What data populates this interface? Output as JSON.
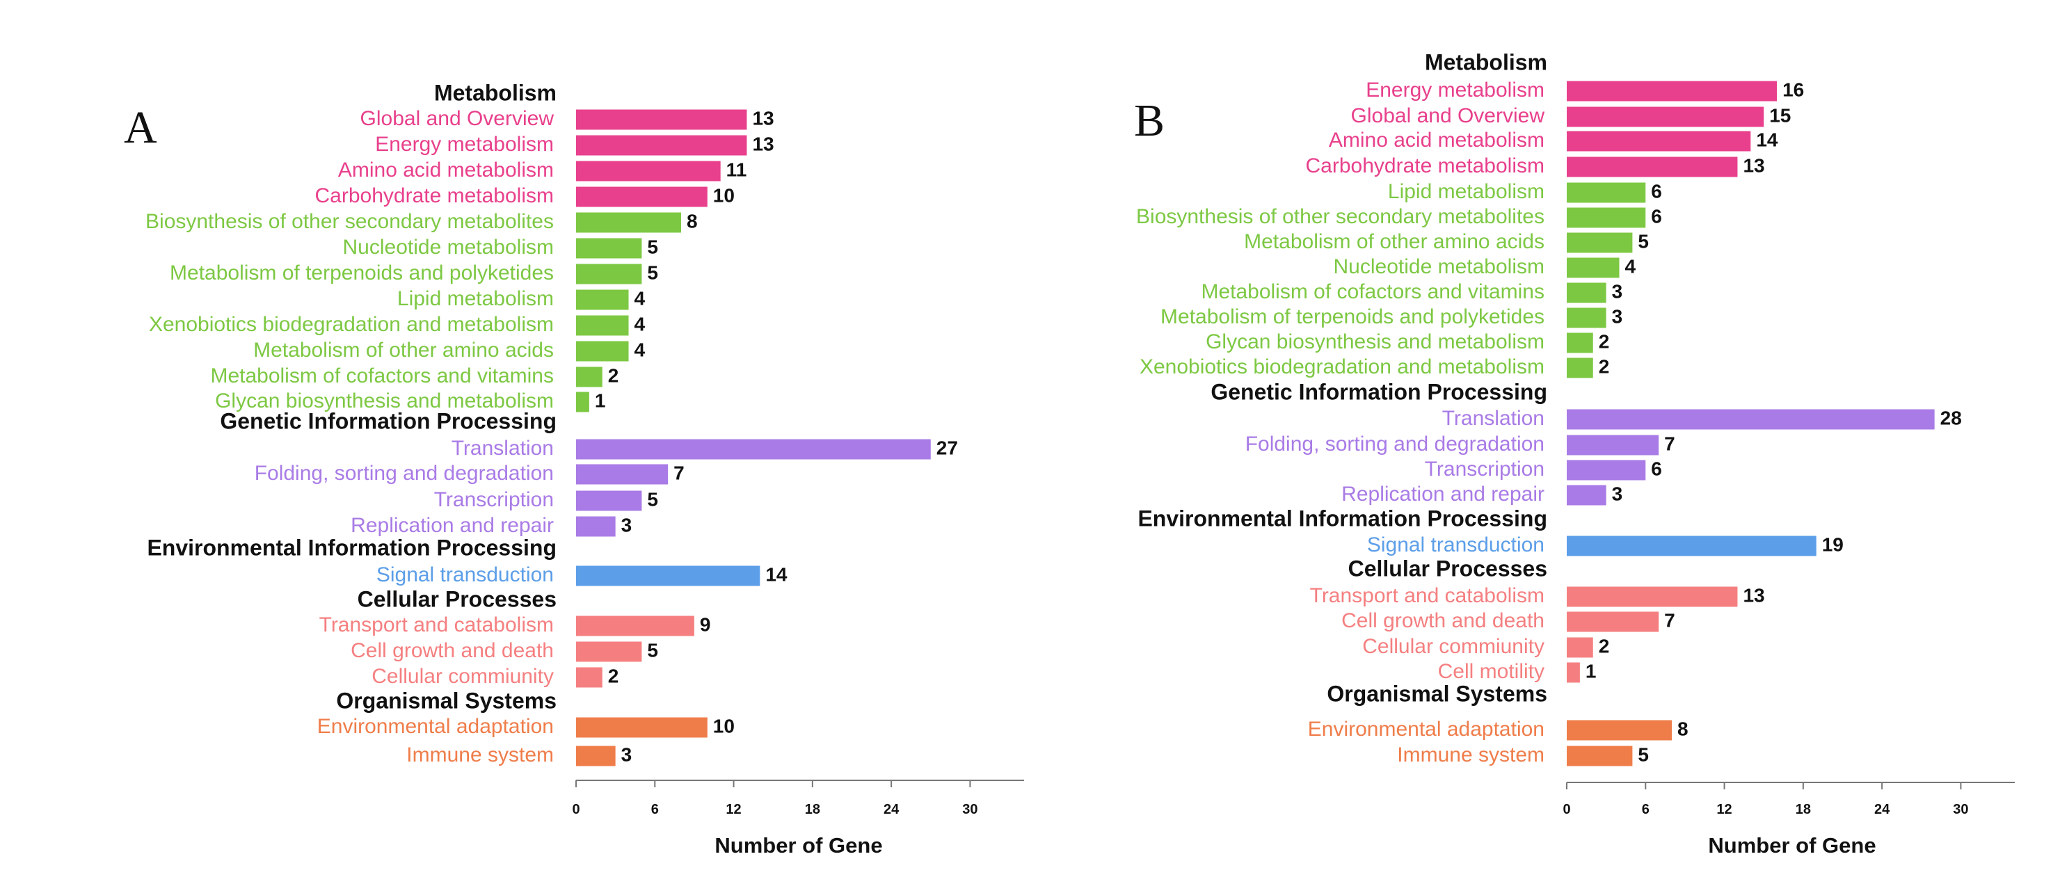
{
  "colors": {
    "Metabolism_top": "#E8408C",
    "Metabolism": "#7DC843",
    "Genetic Information Processing": "#A97BE6",
    "Environmental Information Processing": "#5C9EE8",
    "Cellular Processes": "#F57F80",
    "Organismal Systems": "#EF7D4A",
    "heading": "#111111",
    "axis": "#777777"
  },
  "chart_data": [
    {
      "panel": "A",
      "type": "bar",
      "orientation": "horizontal",
      "xlabel": "Number of Gene",
      "xticks": [
        0,
        6,
        12,
        18,
        24,
        30
      ],
      "xlim": [
        0,
        35
      ],
      "groups": [
        {
          "heading": "Metabolism",
          "items": [
            {
              "label": "Global and Overview",
              "value": 13,
              "color_key": "Metabolism_top"
            },
            {
              "label": "Energy metabolism",
              "value": 13,
              "color_key": "Metabolism_top"
            },
            {
              "label": "Amino acid metabolism",
              "value": 11,
              "color_key": "Metabolism_top"
            },
            {
              "label": "Carbohydrate metabolism",
              "value": 10,
              "color_key": "Metabolism_top"
            },
            {
              "label": "Biosynthesis of other secondary metabolites",
              "value": 8,
              "color_key": "Metabolism"
            },
            {
              "label": "Nucleotide metabolism",
              "value": 5,
              "color_key": "Metabolism"
            },
            {
              "label": "Metabolism of terpenoids and polyketides",
              "value": 5,
              "color_key": "Metabolism"
            },
            {
              "label": "Lipid metabolism",
              "value": 4,
              "color_key": "Metabolism"
            },
            {
              "label": "Xenobiotics biodegradation and metabolism",
              "value": 4,
              "color_key": "Metabolism"
            },
            {
              "label": "Metabolism of other amino acids",
              "value": 4,
              "color_key": "Metabolism"
            },
            {
              "label": "Metabolism of cofactors and vitamins",
              "value": 2,
              "color_key": "Metabolism"
            },
            {
              "label": "Glycan biosynthesis and metabolism",
              "value": 1,
              "color_key": "Metabolism"
            }
          ]
        },
        {
          "heading": "Genetic Information Processing",
          "items": [
            {
              "label": "Translation",
              "value": 27,
              "color_key": "Genetic Information Processing"
            },
            {
              "label": "Folding, sorting and degradation",
              "value": 7,
              "color_key": "Genetic Information Processing"
            },
            {
              "label": "Transcription",
              "value": 5,
              "color_key": "Genetic Information Processing"
            },
            {
              "label": "Replication and repair",
              "value": 3,
              "color_key": "Genetic Information Processing"
            }
          ]
        },
        {
          "heading": "Environmental Information Processing",
          "items": [
            {
              "label": "Signal transduction",
              "value": 14,
              "color_key": "Environmental Information Processing"
            }
          ]
        },
        {
          "heading": "Cellular Processes",
          "items": [
            {
              "label": "Transport and catabolism",
              "value": 9,
              "color_key": "Cellular Processes"
            },
            {
              "label": "Cell growth and death",
              "value": 5,
              "color_key": "Cellular Processes"
            },
            {
              "label": "Cellular commiunity",
              "value": 2,
              "color_key": "Cellular Processes"
            }
          ]
        },
        {
          "heading": "Organismal Systems",
          "items": [
            {
              "label": "Environmental adaptation",
              "value": 10,
              "color_key": "Organismal Systems"
            },
            {
              "label": "Immune system",
              "value": 3,
              "color_key": "Organismal Systems"
            }
          ]
        }
      ]
    },
    {
      "panel": "B",
      "type": "bar",
      "orientation": "horizontal",
      "xlabel": "Number of Gene",
      "xticks": [
        0,
        6,
        12,
        18,
        24,
        30
      ],
      "xlim": [
        0,
        35
      ],
      "groups": [
        {
          "heading": "Metabolism",
          "items": [
            {
              "label": "Energy metabolism",
              "value": 16,
              "color_key": "Metabolism_top"
            },
            {
              "label": "Global and Overview",
              "value": 15,
              "color_key": "Metabolism_top"
            },
            {
              "label": "Amino acid metabolism",
              "value": 14,
              "color_key": "Metabolism_top"
            },
            {
              "label": "Carbohydrate metabolism",
              "value": 13,
              "color_key": "Metabolism_top"
            },
            {
              "label": "Lipid metabolism",
              "value": 6,
              "color_key": "Metabolism"
            },
            {
              "label": "Biosynthesis of other secondary metabolites",
              "value": 6,
              "color_key": "Metabolism"
            },
            {
              "label": "Metabolism of other amino acids",
              "value": 5,
              "color_key": "Metabolism"
            },
            {
              "label": "Nucleotide metabolism",
              "value": 4,
              "color_key": "Metabolism"
            },
            {
              "label": "Metabolism of cofactors and vitamins",
              "value": 3,
              "color_key": "Metabolism"
            },
            {
              "label": "Metabolism of terpenoids and polyketides",
              "value": 3,
              "color_key": "Metabolism"
            },
            {
              "label": "Glycan biosynthesis and metabolism",
              "value": 2,
              "color_key": "Metabolism"
            },
            {
              "label": "Xenobiotics biodegradation and metabolism",
              "value": 2,
              "color_key": "Metabolism"
            }
          ]
        },
        {
          "heading": "Genetic Information Processing",
          "items": [
            {
              "label": "Translation",
              "value": 28,
              "color_key": "Genetic Information Processing"
            },
            {
              "label": "Folding, sorting and degradation",
              "value": 7,
              "color_key": "Genetic Information Processing"
            },
            {
              "label": "Transcription",
              "value": 6,
              "color_key": "Genetic Information Processing"
            },
            {
              "label": "Replication and repair",
              "value": 3,
              "color_key": "Genetic Information Processing"
            }
          ]
        },
        {
          "heading": "Environmental Information Processing",
          "items": [
            {
              "label": "Signal transduction",
              "value": 19,
              "color_key": "Environmental Information Processing"
            }
          ]
        },
        {
          "heading": "Cellular Processes",
          "items": [
            {
              "label": "Transport and catabolism",
              "value": 13,
              "color_key": "Cellular Processes"
            },
            {
              "label": "Cell growth and death",
              "value": 7,
              "color_key": "Cellular Processes"
            },
            {
              "label": "Cellular commiunity",
              "value": 2,
              "color_key": "Cellular Processes"
            },
            {
              "label": "Cell motility",
              "value": 1,
              "color_key": "Cellular Processes"
            }
          ]
        },
        {
          "heading": "Organismal Systems",
          "items": [
            {
              "label": "Environmental adaptation",
              "value": 8,
              "color_key": "Organismal Systems"
            },
            {
              "label": "Immune system",
              "value": 5,
              "color_key": "Organismal Systems"
            }
          ]
        }
      ]
    }
  ]
}
